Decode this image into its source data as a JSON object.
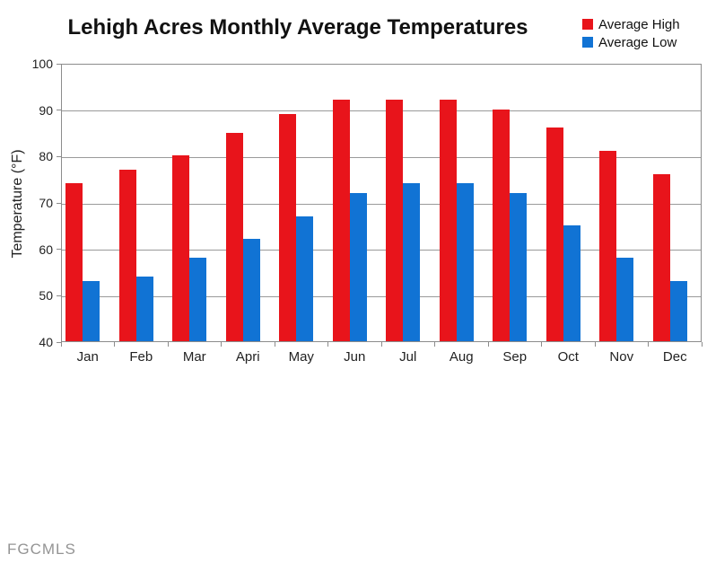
{
  "chart_data": {
    "type": "bar",
    "title": "Lehigh Acres Monthly Average Temperatures",
    "categories": [
      "Jan",
      "Feb",
      "Mar",
      "Apri",
      "May",
      "Jun",
      "Jul",
      "Aug",
      "Sep",
      "Oct",
      "Nov",
      "Dec"
    ],
    "series": [
      {
        "name": "Average High",
        "color": "#e8141b",
        "values": [
          74,
          77,
          80,
          85,
          89,
          92,
          92,
          92,
          90,
          86,
          81,
          76
        ]
      },
      {
        "name": "Average Low",
        "color": "#1173d4",
        "values": [
          53,
          54,
          58,
          62,
          67,
          72,
          74,
          74,
          72,
          65,
          58,
          53
        ]
      }
    ],
    "xlabel": "",
    "ylabel": "Temperature (°F)",
    "ylim": [
      40,
      100
    ],
    "yticks": [
      100,
      90,
      80,
      70,
      60,
      50,
      40
    ],
    "grid": true,
    "legend_position": "top-right"
  },
  "watermark": "FGCMLS",
  "colors": {
    "grid": "#9a9a9a",
    "axis": "#8c8c8c",
    "text": "#222222",
    "title_text": "#111111",
    "watermark": "#949494",
    "background": "#ffffff"
  }
}
